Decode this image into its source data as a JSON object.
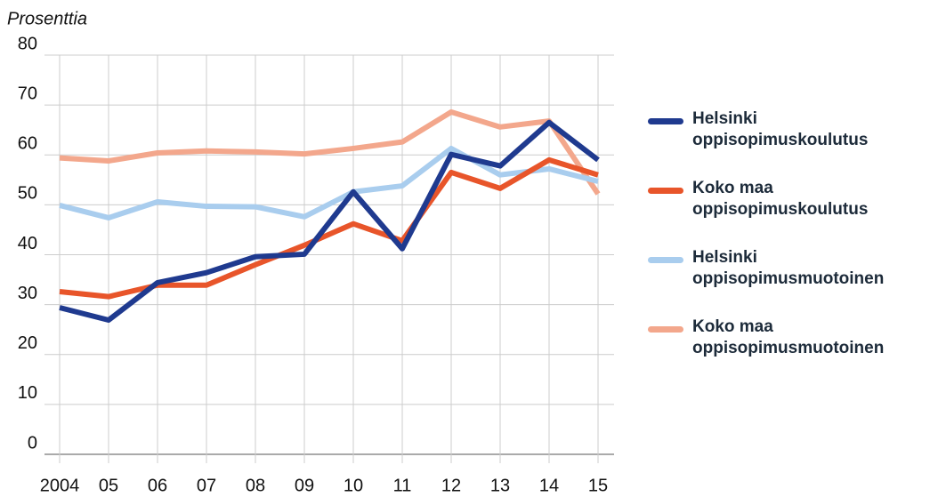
{
  "chart_data": {
    "type": "line",
    "y_label": "Prosenttia",
    "categories": [
      "2004",
      "05",
      "06",
      "07",
      "08",
      "09",
      "10",
      "11",
      "12",
      "13",
      "14",
      "15"
    ],
    "ylim": [
      0,
      80
    ],
    "yticks": [
      0,
      10,
      20,
      30,
      40,
      50,
      60,
      70,
      80
    ],
    "grid": true,
    "series": [
      {
        "name": "Helsinki oppisopimuskoulutus",
        "color": "#1f3a8f",
        "values": [
          29.4,
          26.9,
          34.4,
          36.4,
          39.6,
          40.1,
          52.6,
          41.2,
          60.1,
          57.8,
          66.5,
          59.0
        ]
      },
      {
        "name": "Koko maa oppisopimuskoulutus",
        "color": "#e8552a",
        "values": [
          32.6,
          31.6,
          33.9,
          33.9,
          38.0,
          41.9,
          46.2,
          42.8,
          56.5,
          53.3,
          59.0,
          56.0
        ]
      },
      {
        "name": "Helsinki oppisopimusmuotoinen",
        "color": "#a9cdee",
        "values": [
          49.9,
          47.4,
          50.6,
          49.7,
          49.6,
          47.6,
          52.6,
          53.8,
          61.3,
          56.0,
          57.2,
          54.7
        ]
      },
      {
        "name": "Koko maa oppisopimusmuotoinen",
        "color": "#f3a78c",
        "values": [
          59.4,
          58.8,
          60.4,
          60.8,
          60.6,
          60.2,
          61.3,
          62.6,
          68.6,
          65.6,
          66.8,
          52.2
        ]
      }
    ]
  }
}
